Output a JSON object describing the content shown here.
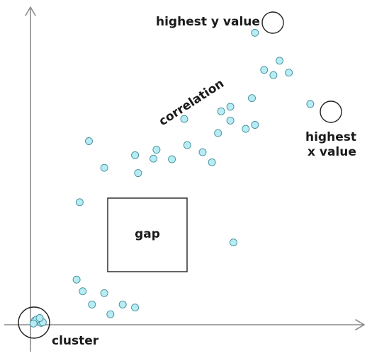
{
  "colors": {
    "point_fill": "#b7ecf4",
    "point_stroke": "#3f8d98",
    "axis": "#8c8c8c",
    "annotation": "#1a1a1a"
  },
  "chart_data": {
    "type": "scatter",
    "title": "",
    "xlabel": "",
    "ylabel": "",
    "xlim": [
      0,
      100
    ],
    "ylim": [
      0,
      100
    ],
    "grid": false,
    "legend": "none",
    "series": [
      {
        "x": [
          2.5,
          3.5,
          1.5,
          4,
          2,
          3,
          1,
          15,
          17,
          24,
          30,
          34,
          20,
          26,
          16,
          19,
          24,
          35,
          34,
          40,
          41,
          46,
          51,
          56,
          50,
          59,
          61,
          62,
          65,
          65,
          70,
          73,
          72,
          76,
          79,
          81,
          84,
          66,
          91,
          73
        ],
        "y": [
          1,
          0.6,
          1.4,
          0.8,
          1.7,
          2.2,
          0.4,
          14.7,
          10.9,
          10.3,
          6.6,
          5.6,
          6.6,
          3.4,
          39.9,
          59.8,
          51.1,
          49.4,
          55.2,
          54.1,
          57.0,
          53.9,
          58.5,
          56.2,
          67.0,
          52.9,
          62.4,
          69.5,
          66.5,
          71.0,
          63.8,
          65.1,
          73.8,
          83.0,
          81.3,
          86.0,
          82.1,
          26.8,
          71.9,
          95.1
        ]
      }
    ],
    "annotations": [
      {
        "text": "highest y value",
        "target": "point at max y",
        "marker": "ring"
      },
      {
        "text": "highest",
        "text2": "x value",
        "target": "point at max x",
        "marker": "ring"
      },
      {
        "text": "correlation",
        "marker": "rotated label"
      },
      {
        "text": "gap",
        "marker": "box"
      },
      {
        "text": "cluster",
        "target": "points near origin",
        "marker": "ring"
      }
    ]
  }
}
